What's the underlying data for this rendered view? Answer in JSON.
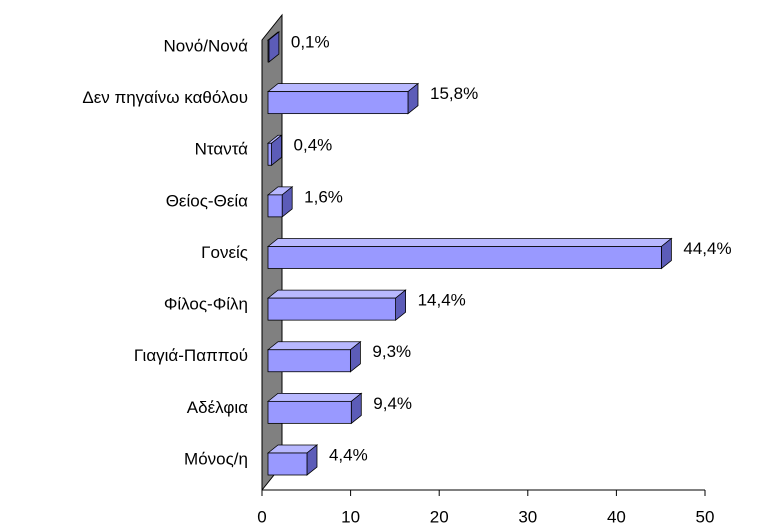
{
  "chart_data": {
    "type": "bar3d_horizontal",
    "categories": [
      "Νονό/Νονά",
      "Δεν πηγαίνω καθόλου",
      "Νταντά",
      "Θείος-Θεία",
      "Γονείς",
      "Φίλος-Φίλη",
      "Γιαγιά-Παππού",
      "Αδέλφια",
      "Μόνος/η"
    ],
    "values": [
      0.1,
      15.8,
      0.4,
      1.6,
      44.4,
      14.4,
      9.3,
      9.4,
      4.4
    ],
    "value_labels": [
      "0,1%",
      "15,8%",
      "0,4%",
      "1,6%",
      "44,4%",
      "14,4%",
      "9,3%",
      "9,4%",
      "4,4%"
    ],
    "color": "#9999ff",
    "xlim": [
      0,
      50
    ],
    "xticks": [
      0,
      10,
      20,
      30,
      40,
      50
    ]
  }
}
